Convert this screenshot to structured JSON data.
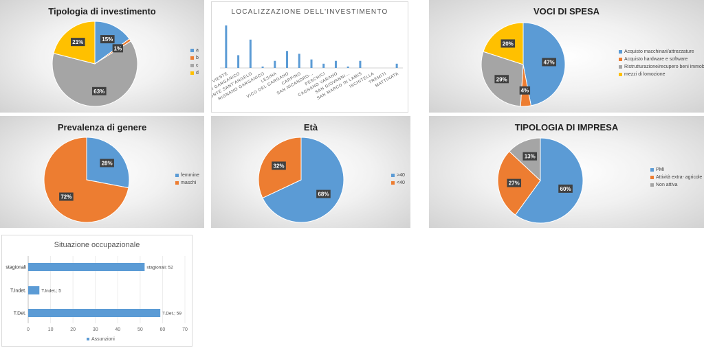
{
  "colors": {
    "blue": "#5B9BD5",
    "orange": "#ED7D31",
    "gray": "#A5A5A5",
    "yellow": "#FFC000",
    "label_bg": "#404040"
  },
  "charts": [
    {
      "id": "tipologia",
      "type": "pie",
      "title": "Tipologia di investimento",
      "labels": [
        "a",
        "b",
        "c",
        "d"
      ],
      "values": [
        15,
        1,
        63,
        21
      ],
      "data_labels": [
        "15%",
        "1%",
        "63%",
        "21%"
      ],
      "colors": [
        "#5B9BD5",
        "#ED7D31",
        "#A5A5A5",
        "#FFC000"
      ],
      "legend": "right"
    },
    {
      "id": "localizzazione",
      "type": "bar",
      "title": "LOCALIZZAZIONE  DELL'INVESTIMENTO",
      "categories": [
        "VIESTE",
        "RODI GARGANICO",
        "MONTE SANT'ANGELO",
        "RIGNANO GARGANICO",
        "LESINA",
        "VICO DEL GARGANO",
        "CARPINO",
        "SAN NICANDRO...",
        "PESCHICI",
        "CAGNANO VARANO",
        "SAN GIOVANNI...",
        "SAN MARCO IN LAMIS",
        "ISCHITELLA",
        "TREMITI",
        "MATTINATA"
      ],
      "values": [
        30,
        9,
        20,
        1,
        5,
        12,
        10,
        6,
        3,
        5,
        1,
        5,
        0,
        0,
        3
      ],
      "ylim": [
        0,
        32
      ],
      "color": "#5B9BD5"
    },
    {
      "id": "spesa",
      "type": "pie",
      "title": "VOCI DI SPESA",
      "labels": [
        "Acquisto macchinari/attrezzature",
        "Acquisto hardware e software",
        "Ristrutturazione/recupero beni immobili",
        "mezzi di lomozione"
      ],
      "values": [
        47,
        4,
        29,
        20
      ],
      "data_labels": [
        "47%",
        "4%",
        "29%",
        "20%"
      ],
      "colors": [
        "#5B9BD5",
        "#ED7D31",
        "#A5A5A5",
        "#FFC000"
      ],
      "legend": "right"
    },
    {
      "id": "genere",
      "type": "pie",
      "title": "Prevalenza di genere",
      "labels": [
        "femmine",
        "maschi"
      ],
      "values": [
        28,
        72
      ],
      "data_labels": [
        "28%",
        "72%"
      ],
      "colors": [
        "#5B9BD5",
        "#ED7D31"
      ],
      "legend": "right"
    },
    {
      "id": "eta",
      "type": "pie",
      "title": "Età",
      "labels": [
        ">40",
        "<40"
      ],
      "values": [
        68,
        32
      ],
      "data_labels": [
        "68%",
        "32%"
      ],
      "colors": [
        "#5B9BD5",
        "#ED7D31"
      ],
      "legend": "right"
    },
    {
      "id": "impresa",
      "type": "pie",
      "title": "TIPOLOGIA DI IMPRESA",
      "labels": [
        "PMI",
        "Attività extra- agricole",
        "Non attiva"
      ],
      "values": [
        60,
        27,
        13
      ],
      "data_labels": [
        "60%",
        "27%",
        "13%"
      ],
      "colors": [
        "#5B9BD5",
        "#ED7D31",
        "#A5A5A5"
      ],
      "legend": "right"
    },
    {
      "id": "occupazione",
      "type": "bar",
      "orientation": "horizontal",
      "title": "Situazione occupazionale",
      "categories": [
        "stagionali",
        "T.Indet.",
        "T.Det."
      ],
      "values": [
        52,
        5,
        59
      ],
      "data_labels": [
        "stagionali; 52",
        "T.Indet.; 5",
        "T.Det.; 59"
      ],
      "xticks": [
        "0",
        "10",
        "20",
        "30",
        "40",
        "50",
        "60",
        "70"
      ],
      "xlim": [
        0,
        70
      ],
      "series": [
        {
          "name": "Assunzioni",
          "values": [
            52,
            5,
            59
          ]
        }
      ],
      "legend": "bottom",
      "color": "#5B9BD5"
    }
  ]
}
